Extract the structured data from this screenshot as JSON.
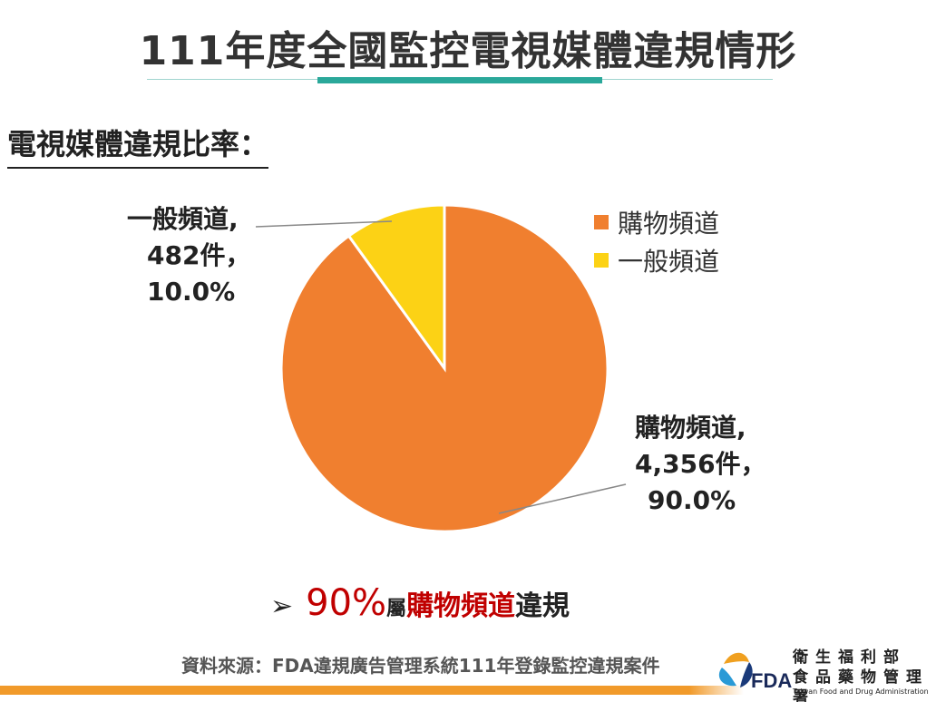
{
  "page": {
    "title": "111年度全國監控電視媒體違規情形",
    "subtitle": "電視媒體違規比率："
  },
  "chart_data": {
    "type": "pie",
    "categories": [
      "購物頻道",
      "一般頻道"
    ],
    "values": [
      4356,
      482
    ],
    "percentages": [
      "90.0%",
      "10.0%"
    ],
    "colors": [
      "#f07f2f",
      "#fcd215"
    ],
    "legend": [
      "購物頻道",
      "一般頻道"
    ],
    "legend_position": "top-right",
    "labels": {
      "shopping": [
        "購物頻道,",
        "4,356件，",
        "90.0%"
      ],
      "general": [
        "一般頻道,",
        "482件，",
        "10.0%"
      ]
    }
  },
  "note": {
    "arrow": "➢",
    "pct": "90%",
    "small": "屬",
    "channel": "購物頻道",
    "end": "違規"
  },
  "source": "資料來源：FDA違規廣告管理系統111年登錄監控違規案件",
  "logo": {
    "agency": "衛 生 福 利 部\n食品藥物管理署",
    "agency_line1": "衛生福利部",
    "agency_line2": "食品藥物管理署",
    "fda": "FDA",
    "english": "Taiwan Food and Drug Administration"
  }
}
